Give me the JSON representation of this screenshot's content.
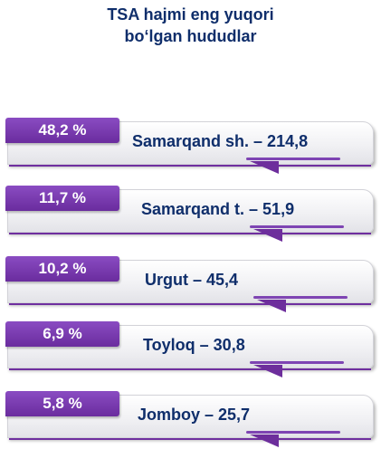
{
  "title": {
    "line1": "TSA hajmi eng yuqori",
    "line2": "bo‘lgan hududlar"
  },
  "chart_data": {
    "type": "bar",
    "title": "TSA hajmi eng yuqori bo‘lgan hududlar",
    "categories": [
      "Samarqand sh.",
      "Samarqand t.",
      "Urgut",
      "Toyloq",
      "Jomboy"
    ],
    "values": [
      214.8,
      51.9,
      45.4,
      30.8,
      25.7
    ],
    "shares": [
      "48,2 %",
      "11,7 %",
      "10,2 %",
      "6,9 %",
      "5,8 %"
    ],
    "labels": [
      "Samarqand sh. – 214,8",
      "Samarqand t. – 51,9",
      "Urgut – 45,4",
      "Toyloq – 30,8",
      "Jomboy – 25,7"
    ]
  },
  "colors": {
    "accent": "#7030a0",
    "text": "#0f2e6b",
    "card": "#f1f1f4"
  }
}
